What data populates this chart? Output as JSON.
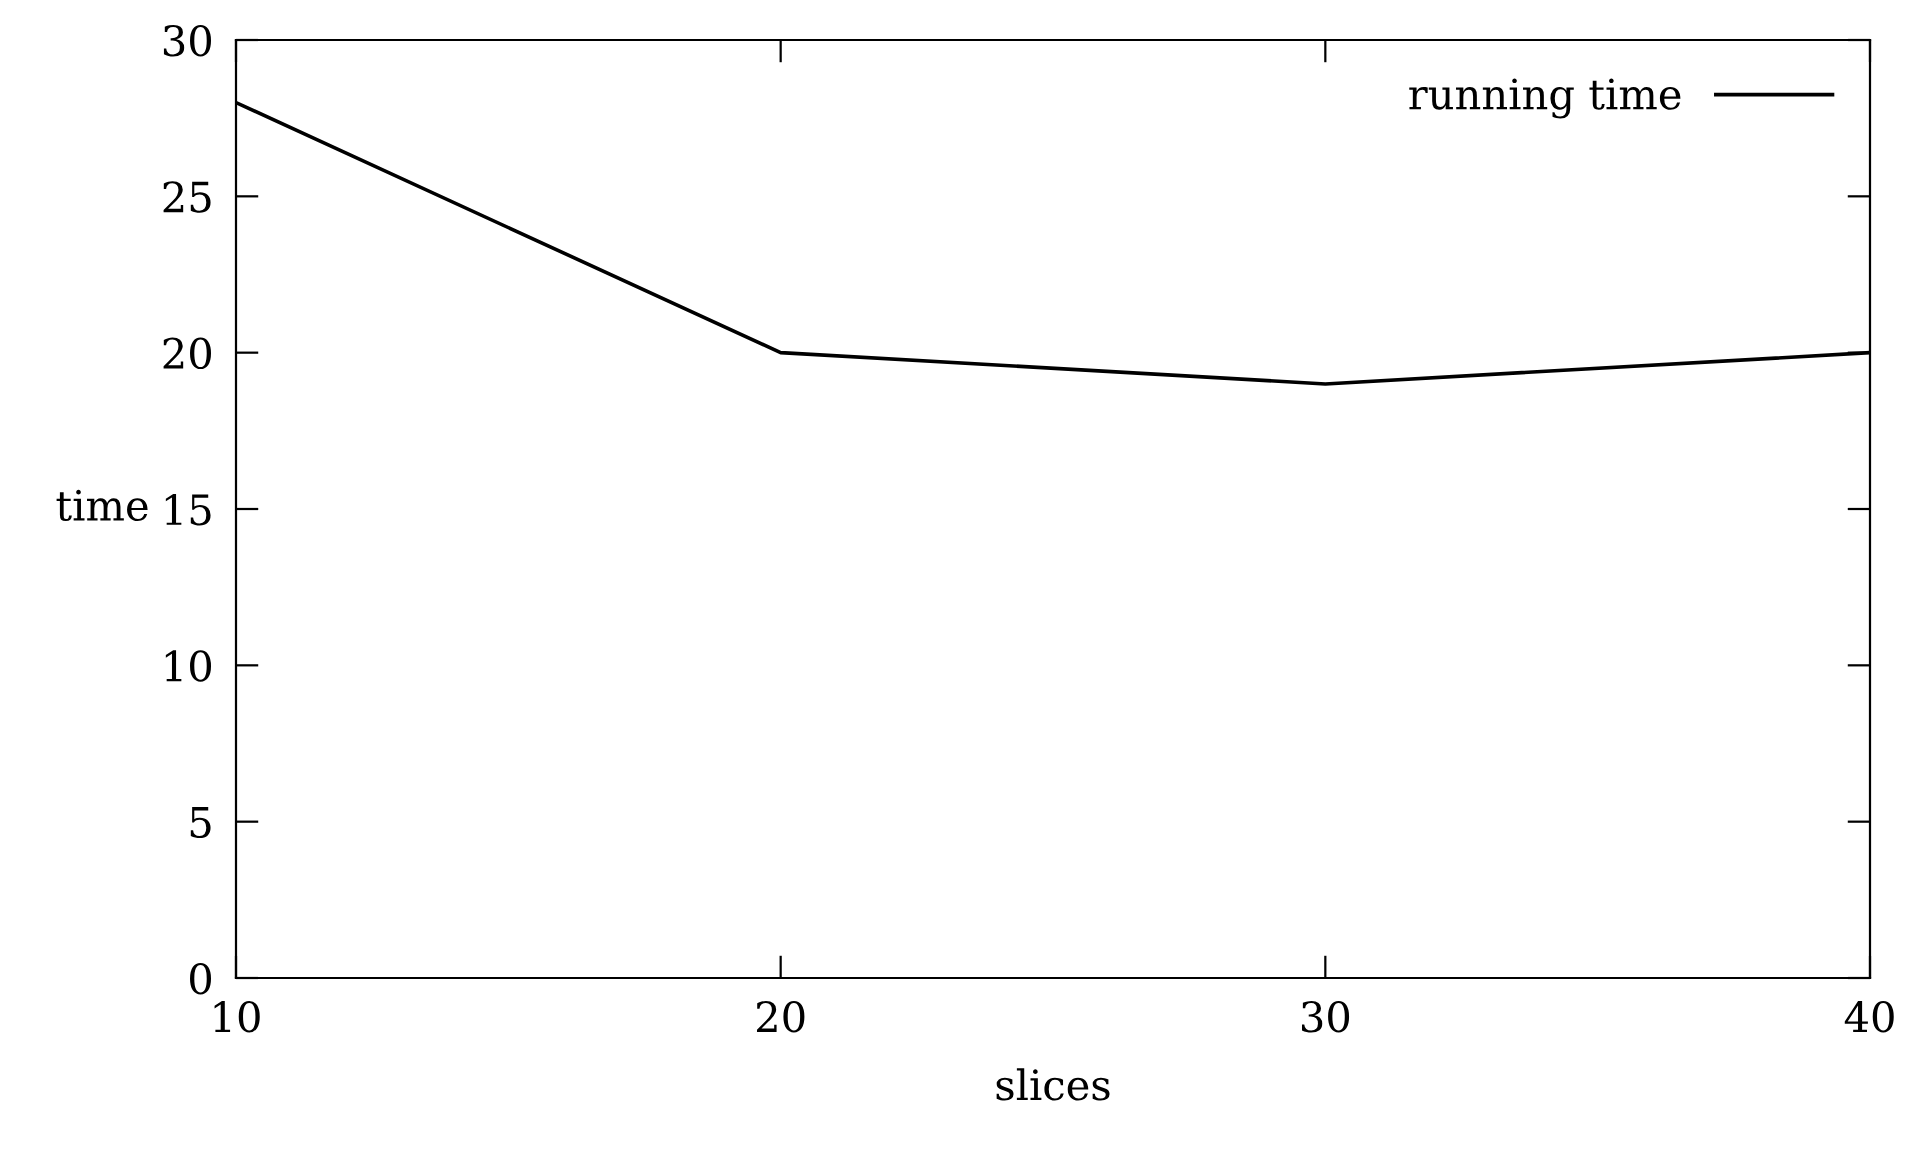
{
  "chart_data": {
    "type": "line",
    "xlabel": "slices",
    "ylabel": "time",
    "x": [
      10,
      20,
      30,
      40
    ],
    "series": [
      {
        "name": "running time",
        "color": "#000000",
        "values": [
          28,
          20,
          19,
          20
        ]
      }
    ],
    "xlim": [
      10,
      40
    ],
    "xticks": [
      10,
      20,
      30,
      40
    ],
    "ylim": [
      0,
      30
    ],
    "yticks": [
      0,
      5,
      10,
      15,
      20,
      25,
      30
    ],
    "grid": false,
    "legend": "top right",
    "marker": "none",
    "line_style": "solid"
  }
}
